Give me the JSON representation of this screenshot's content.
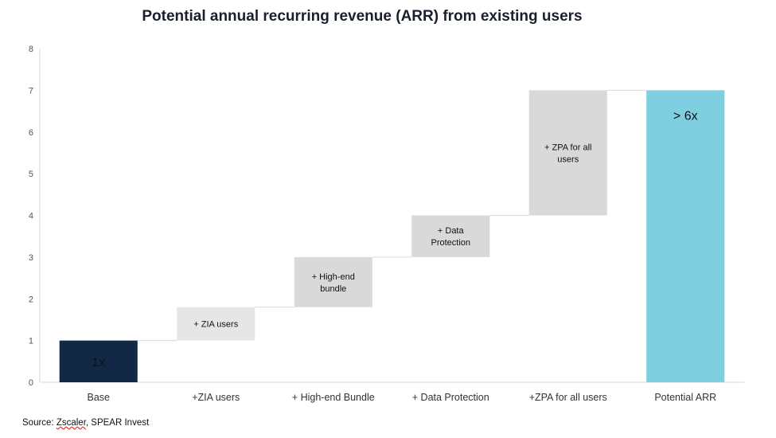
{
  "chart_data": {
    "type": "bar",
    "subtype": "waterfall",
    "title": "Potential annual recurring revenue (ARR) from existing users",
    "xlabel": "",
    "ylabel": "",
    "ylim": [
      0,
      8
    ],
    "yticks": [
      "0",
      "1",
      "2",
      "3",
      "4",
      "5",
      "6",
      "7",
      "8"
    ],
    "grid": false,
    "legend": "none",
    "categories": [
      "Base",
      "+ZIA users",
      "+ High-end Bundle",
      "+ Data Protection",
      "+ZPA for all users",
      "Potential ARR"
    ],
    "bars": [
      {
        "category": "Base",
        "start": 0,
        "end": 1,
        "label": "1x",
        "color": "#132845",
        "label_color": "#ffffff",
        "kind": "total"
      },
      {
        "category": "+ZIA users",
        "start": 1,
        "end": 1.8,
        "label": "+ ZIA users",
        "color": "#e6e6e6",
        "label_color": "#111111",
        "kind": "increment"
      },
      {
        "category": "+ High-end Bundle",
        "start": 1.8,
        "end": 3,
        "label": "+ High-end bundle",
        "color": "#d9d9d9",
        "label_color": "#111111",
        "kind": "increment"
      },
      {
        "category": "+ Data Protection",
        "start": 3,
        "end": 4,
        "label": "+ Data Protection",
        "color": "#d9d9d9",
        "label_color": "#111111",
        "kind": "increment"
      },
      {
        "category": "+ZPA for all users",
        "start": 4,
        "end": 7,
        "label": "+ ZPA for all users",
        "color": "#d9d9d9",
        "label_color": "#111111",
        "kind": "increment"
      },
      {
        "category": "Potential ARR",
        "start": 0,
        "end": 7,
        "label": "> 6x",
        "color": "#7ecfdf",
        "label_color": "#111111",
        "kind": "total"
      }
    ]
  },
  "footer": {
    "source_prefix": "Source: ",
    "source_underlined": "Zscaler",
    "source_suffix": ", SPEAR Invest"
  }
}
